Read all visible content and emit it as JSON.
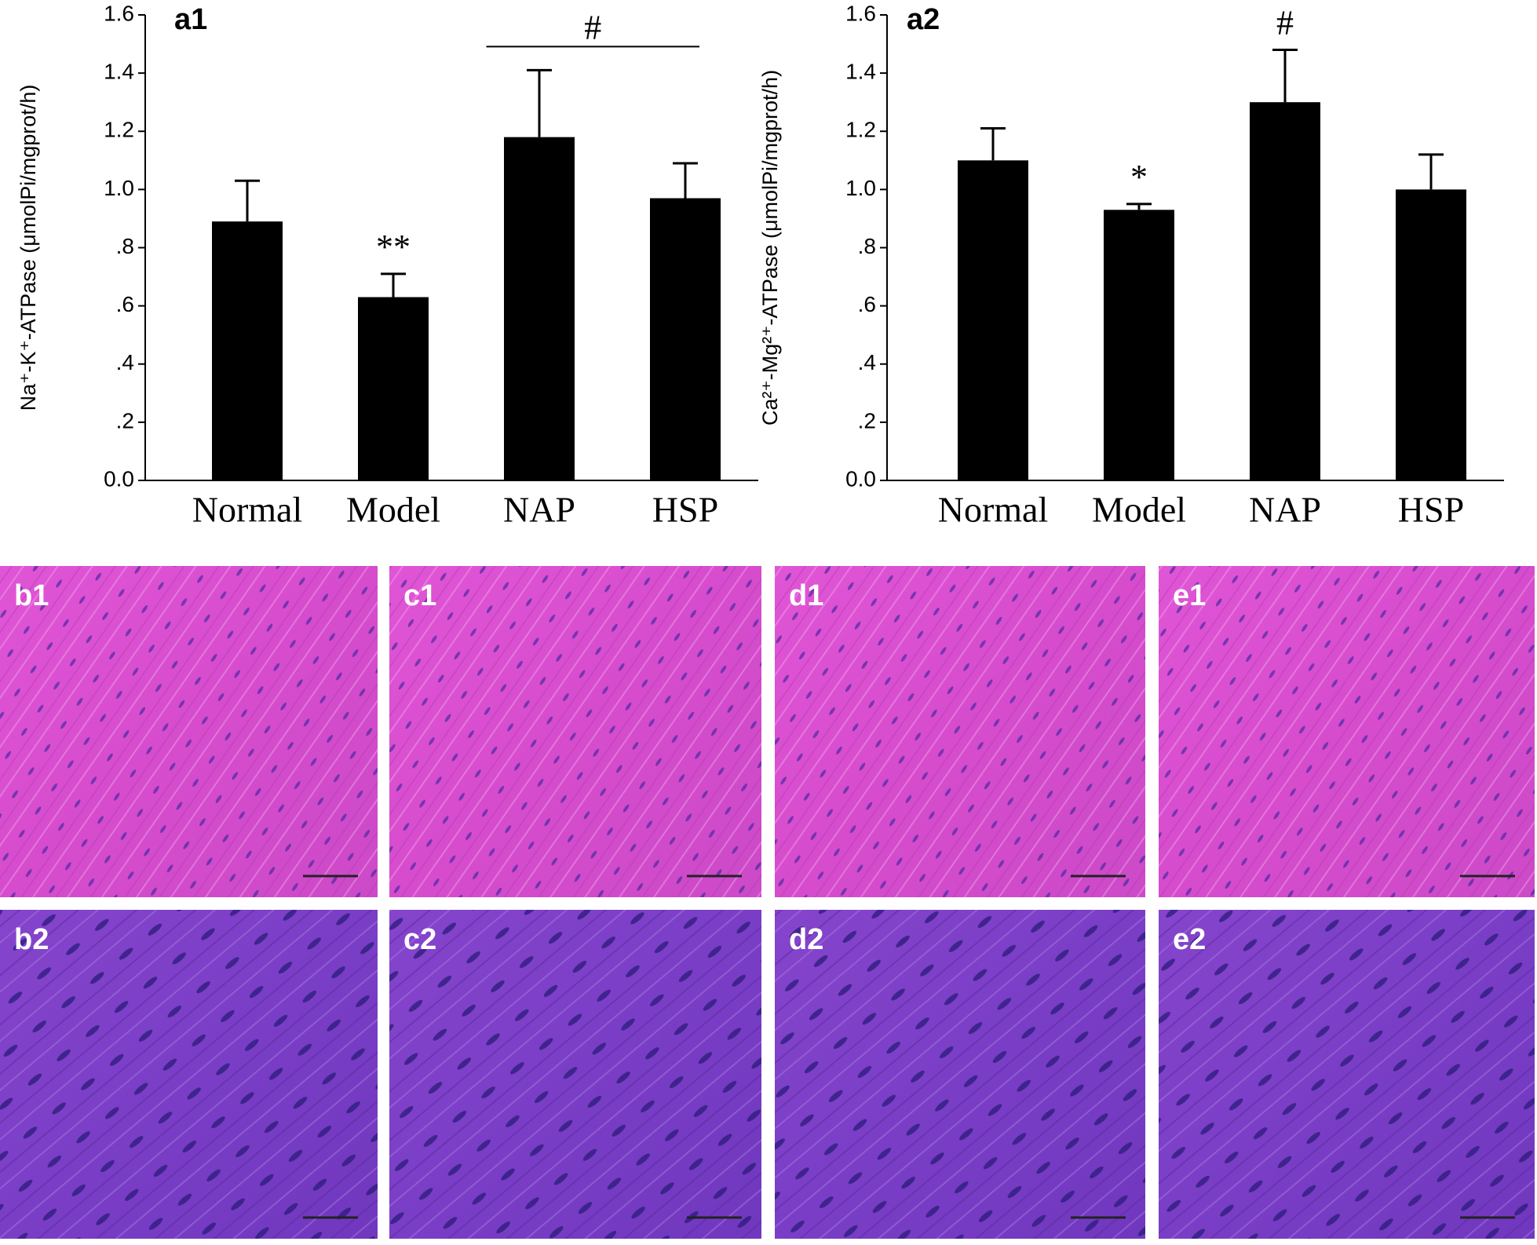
{
  "chart_data": [
    {
      "type": "bar",
      "panel": "a1",
      "ylabel": "Na⁺-K⁺-ATPase (μmolPi/mgprot/h)",
      "categories": [
        "Normal",
        "Model",
        "NAP",
        "HSP"
      ],
      "values": [
        0.89,
        0.63,
        1.18,
        0.97
      ],
      "errors": [
        0.14,
        0.08,
        0.23,
        0.12
      ],
      "color": "#000000",
      "ylim": [
        0,
        1.6
      ],
      "yticks": [
        {
          "value": 0,
          "label": "0.0"
        },
        {
          "value": 0.2,
          "label": ".2"
        },
        {
          "value": 0.4,
          "label": ".4"
        },
        {
          "value": 0.6,
          "label": ".6"
        },
        {
          "value": 0.8,
          "label": ".8"
        },
        {
          "value": 1.0,
          "label": "1.0"
        },
        1.2,
        1.4,
        1.6
      ],
      "annotations": [
        {
          "text": "**",
          "target": [
            "Model"
          ]
        },
        {
          "text": "#",
          "target": [
            "NAP",
            "HSP"
          ]
        }
      ]
    },
    {
      "type": "bar",
      "panel": "a2",
      "ylabel": "Ca²⁺-Mg²⁺-ATPase (μmolPi/mgprot/h)",
      "categories": [
        "Normal",
        "Model",
        "NAP",
        "HSP"
      ],
      "values": [
        1.1,
        0.93,
        1.3,
        1.0
      ],
      "errors": [
        0.11,
        0.02,
        0.18,
        0.12
      ],
      "color": "#000000",
      "ylim": [
        0,
        1.6
      ],
      "yticks": [
        {
          "value": 0,
          "label": "0.0"
        },
        {
          "value": 0.2,
          "label": ".2"
        },
        {
          "value": 0.4,
          "label": ".4"
        },
        {
          "value": 0.6,
          "label": ".6"
        },
        {
          "value": 0.8,
          "label": ".8"
        },
        {
          "value": 1.0,
          "label": "1.0"
        },
        1.2,
        1.4,
        1.6
      ],
      "annotations": [
        {
          "text": "*",
          "target": [
            "Model"
          ]
        },
        {
          "text": "#",
          "target": [
            "NAP"
          ]
        }
      ]
    }
  ],
  "panels": {
    "labels": [
      "b1",
      "c1",
      "d1",
      "e1",
      "b2",
      "c2",
      "d2",
      "e2"
    ]
  }
}
